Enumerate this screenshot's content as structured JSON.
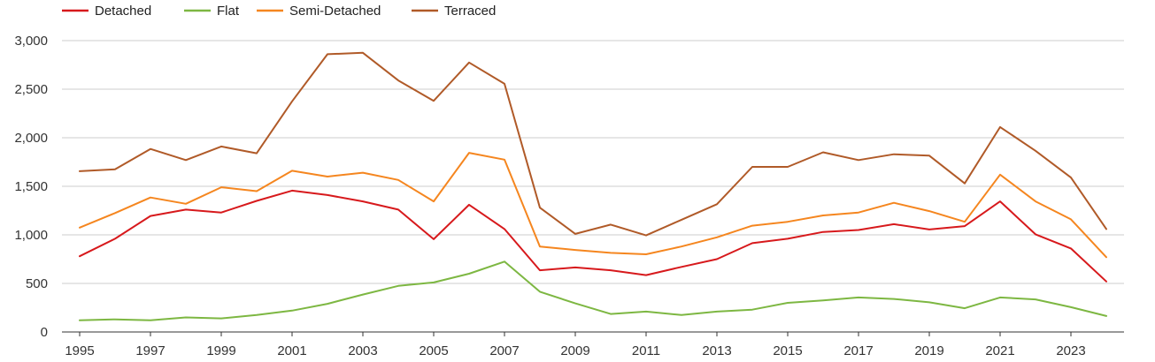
{
  "chart_data": {
    "type": "line",
    "title": "",
    "xlabel": "",
    "ylabel": "",
    "legend_position": "top-left",
    "grid": true,
    "x": [
      1995,
      1996,
      1997,
      1998,
      1999,
      2000,
      2001,
      2002,
      2003,
      2004,
      2005,
      2006,
      2007,
      2008,
      2009,
      2010,
      2011,
      2012,
      2013,
      2014,
      2015,
      2016,
      2017,
      2018,
      2019,
      2020,
      2021,
      2022,
      2023,
      2024
    ],
    "x_ticks": [
      "1995",
      "1997",
      "1999",
      "2001",
      "2003",
      "2005",
      "2007",
      "2009",
      "2011",
      "2013",
      "2015",
      "2017",
      "2019",
      "2021",
      "2023"
    ],
    "xlim": [
      1995,
      2024
    ],
    "ylim": [
      0,
      3000
    ],
    "y_ticks": [
      0,
      500,
      1000,
      1500,
      2000,
      2500,
      3000
    ],
    "y_tick_labels": [
      "0",
      "500",
      "1,000",
      "1,500",
      "2,000",
      "2,500",
      "3,000"
    ],
    "series": [
      {
        "name": "Detached",
        "color": "#d7191c",
        "values": [
          780,
          960,
          1195,
          1260,
          1230,
          1350,
          1455,
          1410,
          1345,
          1260,
          955,
          1310,
          1060,
          635,
          665,
          635,
          585,
          670,
          750,
          915,
          960,
          1030,
          1050,
          1110,
          1055,
          1090,
          1345,
          1005,
          860,
          520
        ]
      },
      {
        "name": "Flat",
        "color": "#7db742",
        "values": [
          120,
          130,
          120,
          150,
          140,
          175,
          220,
          290,
          385,
          475,
          510,
          600,
          725,
          415,
          295,
          185,
          210,
          175,
          210,
          230,
          300,
          325,
          355,
          340,
          305,
          245,
          355,
          335,
          255,
          165
        ]
      },
      {
        "name": "Semi-Detached",
        "color": "#f5861f",
        "values": [
          1075,
          1225,
          1385,
          1320,
          1490,
          1450,
          1660,
          1600,
          1640,
          1565,
          1345,
          1845,
          1775,
          880,
          845,
          815,
          800,
          880,
          975,
          1095,
          1135,
          1200,
          1230,
          1330,
          1245,
          1135,
          1620,
          1345,
          1160,
          770
        ]
      },
      {
        "name": "Terraced",
        "color": "#b05a28",
        "values": [
          1655,
          1675,
          1885,
          1770,
          1910,
          1840,
          2375,
          2860,
          2875,
          2590,
          2380,
          2775,
          2555,
          1280,
          1010,
          1105,
          995,
          1155,
          1315,
          1700,
          1700,
          1850,
          1770,
          1830,
          1815,
          1530,
          2110,
          1865,
          1590,
          1060
        ]
      }
    ]
  }
}
